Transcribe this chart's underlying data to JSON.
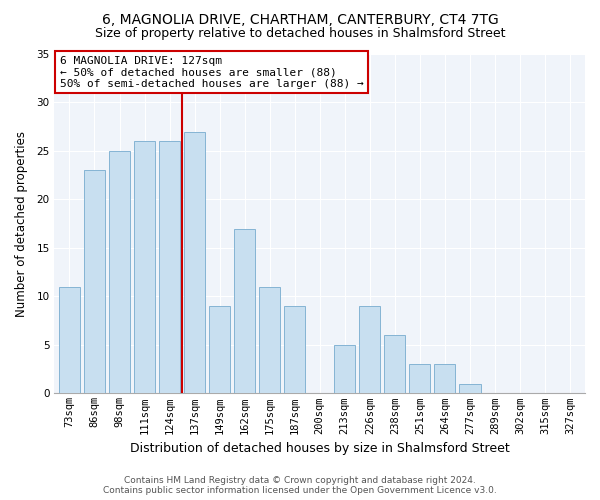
{
  "title": "6, MAGNOLIA DRIVE, CHARTHAM, CANTERBURY, CT4 7TG",
  "subtitle": "Size of property relative to detached houses in Shalmsford Street",
  "xlabel": "Distribution of detached houses by size in Shalmsford Street",
  "ylabel": "Number of detached properties",
  "bar_labels": [
    "73sqm",
    "86sqm",
    "98sqm",
    "111sqm",
    "124sqm",
    "137sqm",
    "149sqm",
    "162sqm",
    "175sqm",
    "187sqm",
    "200sqm",
    "213sqm",
    "226sqm",
    "238sqm",
    "251sqm",
    "264sqm",
    "277sqm",
    "289sqm",
    "302sqm",
    "315sqm",
    "327sqm"
  ],
  "bar_values": [
    11,
    23,
    25,
    26,
    26,
    27,
    9,
    17,
    11,
    9,
    0,
    5,
    9,
    6,
    3,
    3,
    1,
    0,
    0,
    0,
    0
  ],
  "bar_color": "#c8dff0",
  "bar_edge_color": "#85b4d4",
  "vline_color": "#cc0000",
  "vline_x": 4.5,
  "annotation_text": "6 MAGNOLIA DRIVE: 127sqm\n← 50% of detached houses are smaller (88)\n50% of semi-detached houses are larger (88) →",
  "annotation_box_color": "#ffffff",
  "annotation_box_edge": "#cc0000",
  "ylim": [
    0,
    35
  ],
  "yticks": [
    0,
    5,
    10,
    15,
    20,
    25,
    30,
    35
  ],
  "footer": "Contains HM Land Registry data © Crown copyright and database right 2024.\nContains public sector information licensed under the Open Government Licence v3.0.",
  "bg_color": "#ffffff",
  "plot_bg_color": "#f0f4fa",
  "grid_color": "#ffffff",
  "title_fontsize": 10,
  "subtitle_fontsize": 9,
  "ylabel_fontsize": 8.5,
  "xlabel_fontsize": 9,
  "tick_fontsize": 7.5
}
